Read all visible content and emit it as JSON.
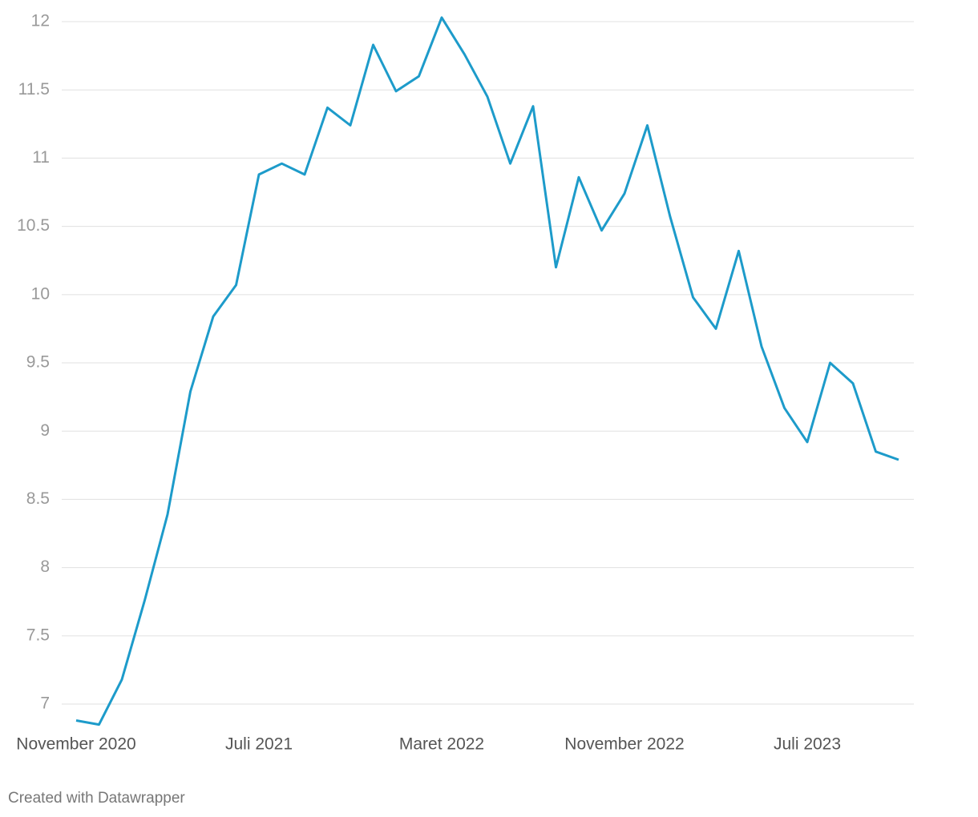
{
  "chart_data": {
    "type": "line",
    "categories": [
      "November 2020",
      null,
      null,
      null,
      null,
      null,
      null,
      null,
      "Juli 2021",
      null,
      null,
      null,
      null,
      null,
      null,
      null,
      "Maret 2022",
      null,
      null,
      null,
      null,
      null,
      null,
      null,
      "November 2022",
      null,
      null,
      null,
      null,
      null,
      null,
      null,
      "Juli 2023",
      null,
      null,
      null,
      null
    ],
    "series": [
      {
        "color": "#1d9bca",
        "values": [
          6.88,
          6.85,
          7.18,
          7.76,
          8.39,
          9.29,
          9.84,
          10.07,
          10.88,
          10.96,
          10.88,
          11.37,
          11.24,
          11.83,
          11.49,
          11.6,
          12.03,
          11.76,
          11.45,
          10.96,
          11.38,
          10.2,
          10.86,
          10.47,
          10.74,
          11.24,
          10.57,
          9.98,
          9.75,
          10.32,
          9.62,
          9.17,
          8.92,
          9.5,
          9.35,
          8.85,
          8.79
        ]
      }
    ],
    "ylim": [
      6.85,
      12.05
    ],
    "yticks": [
      7,
      7.5,
      8,
      8.5,
      9,
      9.5,
      10,
      10.5,
      11,
      11.5,
      12
    ],
    "grid": true,
    "credit": "Created with Datawrapper"
  }
}
